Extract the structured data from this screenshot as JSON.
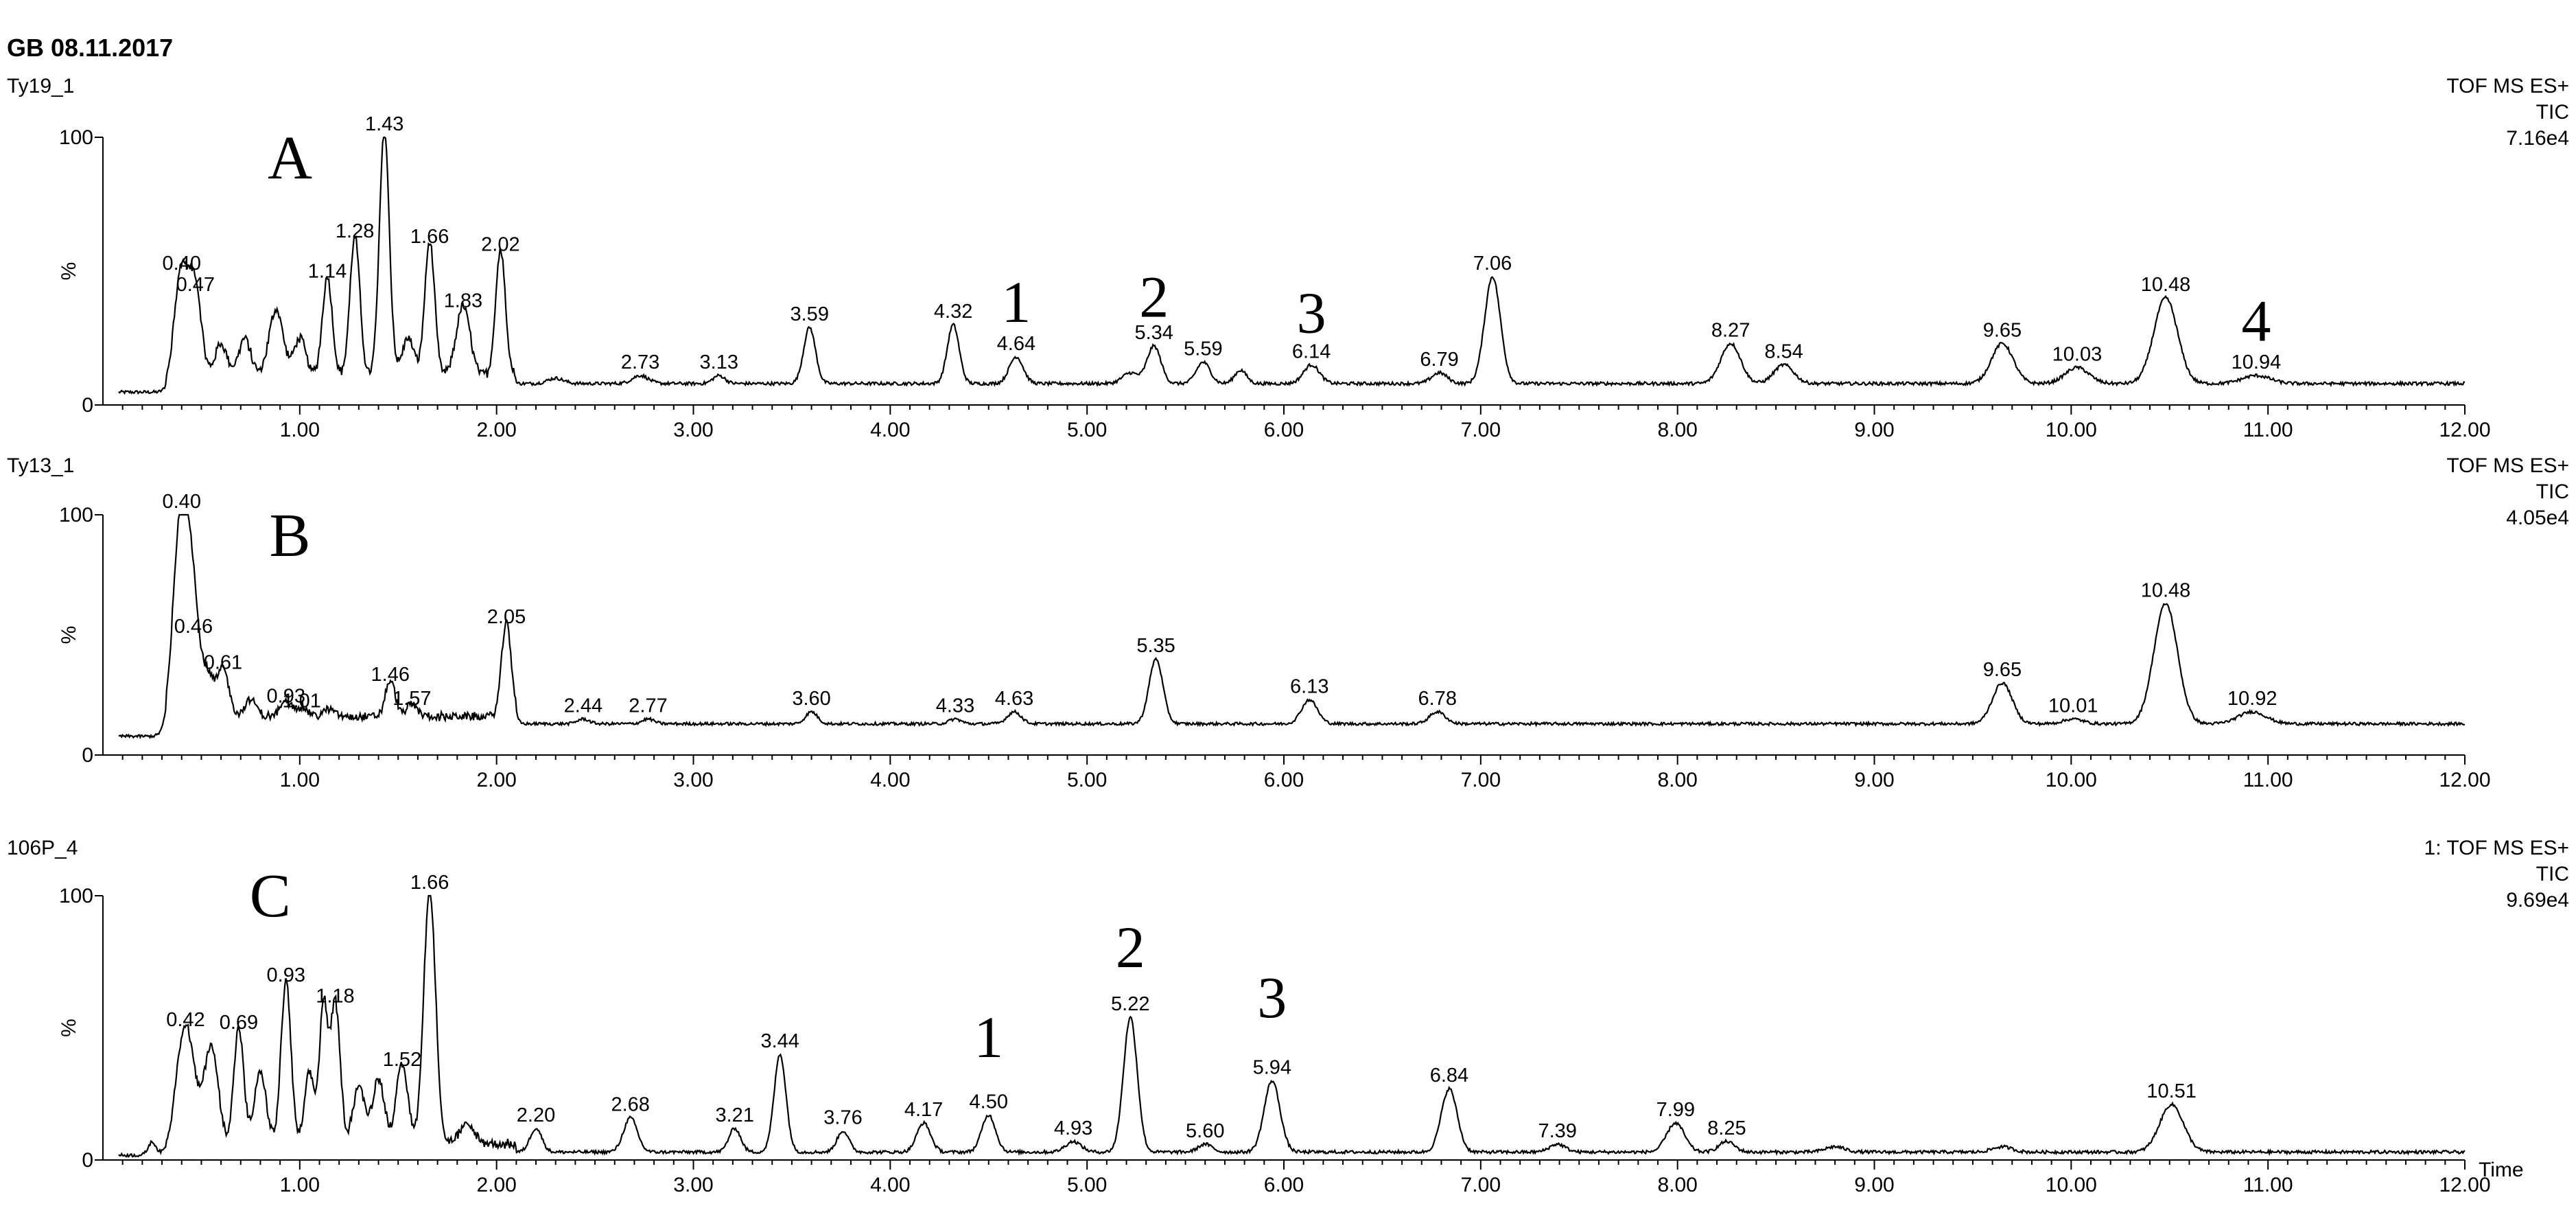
{
  "header": {
    "title": "GB 08.11.2017"
  },
  "style": {
    "line_color": "#000000",
    "background": "#ffffff"
  },
  "chart_data": [
    {
      "type": "line",
      "panel_label": "A",
      "sample_name": "Ty19_1",
      "detector": [
        "TOF MS ES+",
        "TIC",
        "7.16e4"
      ],
      "ylabel": "%",
      "y_tick_labels": [
        "0",
        "100"
      ],
      "xlim": [
        0,
        12
      ],
      "ylim": [
        0,
        100
      ],
      "x_ticks": [
        "1.00",
        "2.00",
        "3.00",
        "4.00",
        "5.00",
        "6.00",
        "7.00",
        "8.00",
        "9.00",
        "10.00",
        "11.00",
        "12.00"
      ],
      "xlabel": "",
      "baseline": 8,
      "peaks": [
        {
          "x": 0.4,
          "y": 48,
          "label": "0.40",
          "w": 0.035
        },
        {
          "x": 0.47,
          "y": 40,
          "label": "0.47",
          "w": 0.03
        },
        {
          "x": 0.6,
          "y": 20,
          "label": null,
          "w": 0.03
        },
        {
          "x": 0.72,
          "y": 22,
          "label": null,
          "w": 0.03
        },
        {
          "x": 0.88,
          "y": 33,
          "label": null,
          "w": 0.035
        },
        {
          "x": 1.0,
          "y": 22,
          "label": null,
          "w": 0.03
        },
        {
          "x": 1.14,
          "y": 45,
          "label": "1.14",
          "w": 0.025
        },
        {
          "x": 1.28,
          "y": 60,
          "label": "1.28",
          "w": 0.025
        },
        {
          "x": 1.43,
          "y": 100,
          "label": "1.43",
          "w": 0.025
        },
        {
          "x": 1.55,
          "y": 22,
          "label": null,
          "w": 0.03
        },
        {
          "x": 1.66,
          "y": 58,
          "label": "1.66",
          "w": 0.025
        },
        {
          "x": 1.83,
          "y": 34,
          "label": "1.83",
          "w": 0.035
        },
        {
          "x": 2.02,
          "y": 55,
          "label": "2.02",
          "w": 0.025
        },
        {
          "x": 2.3,
          "y": 10,
          "label": null,
          "w": 0.04
        },
        {
          "x": 2.73,
          "y": 11,
          "label": "2.73",
          "w": 0.04
        },
        {
          "x": 3.13,
          "y": 11,
          "label": "3.13",
          "w": 0.03
        },
        {
          "x": 3.59,
          "y": 29,
          "label": "3.59",
          "w": 0.03
        },
        {
          "x": 4.32,
          "y": 30,
          "label": "4.32",
          "w": 0.03
        },
        {
          "x": 4.64,
          "y": 18,
          "label": "4.64",
          "w": 0.035
        },
        {
          "x": 5.22,
          "y": 12,
          "label": null,
          "w": 0.04
        },
        {
          "x": 5.34,
          "y": 22,
          "label": "5.34",
          "w": 0.035
        },
        {
          "x": 5.59,
          "y": 16,
          "label": "5.59",
          "w": 0.035
        },
        {
          "x": 5.78,
          "y": 13,
          "label": null,
          "w": 0.03
        },
        {
          "x": 6.14,
          "y": 15,
          "label": "6.14",
          "w": 0.04
        },
        {
          "x": 6.79,
          "y": 12,
          "label": "6.79",
          "w": 0.04
        },
        {
          "x": 7.06,
          "y": 48,
          "label": "7.06",
          "w": 0.04
        },
        {
          "x": 8.27,
          "y": 23,
          "label": "8.27",
          "w": 0.05
        },
        {
          "x": 8.54,
          "y": 15,
          "label": "8.54",
          "w": 0.05
        },
        {
          "x": 9.65,
          "y": 23,
          "label": "9.65",
          "w": 0.055
        },
        {
          "x": 10.03,
          "y": 14,
          "label": "10.03",
          "w": 0.06
        },
        {
          "x": 10.48,
          "y": 40,
          "label": "10.48",
          "w": 0.06
        },
        {
          "x": 10.94,
          "y": 11,
          "label": "10.94",
          "w": 0.07
        }
      ],
      "compound_marks": [
        {
          "x": 4.64,
          "y": 31,
          "label": "1"
        },
        {
          "x": 5.34,
          "y": 33,
          "label": "2"
        },
        {
          "x": 6.14,
          "y": 27,
          "label": "3"
        },
        {
          "x": 10.94,
          "y": 24,
          "label": "4"
        }
      ]
    },
    {
      "type": "line",
      "panel_label": "B",
      "sample_name": "Ty13_1",
      "detector": [
        "TOF MS ES+",
        "TIC",
        "4.05e4"
      ],
      "ylabel": "%",
      "y_tick_labels": [
        "0",
        "100"
      ],
      "xlim": [
        0,
        12
      ],
      "ylim": [
        0,
        100
      ],
      "x_ticks": [
        "1.00",
        "2.00",
        "3.00",
        "4.00",
        "5.00",
        "6.00",
        "7.00",
        "8.00",
        "9.00",
        "10.00",
        "11.00",
        "12.00"
      ],
      "xlabel": "",
      "baseline": 13,
      "peaks": [
        {
          "x": 0.4,
          "y": 100,
          "label": "0.40",
          "w": 0.04
        },
        {
          "x": 0.46,
          "y": 48,
          "label": "0.46",
          "w": 0.03
        },
        {
          "x": 0.53,
          "y": 30,
          "label": null,
          "w": 0.03
        },
        {
          "x": 0.61,
          "y": 33,
          "label": "0.61",
          "w": 0.03
        },
        {
          "x": 0.75,
          "y": 20,
          "label": null,
          "w": 0.03
        },
        {
          "x": 0.93,
          "y": 19,
          "label": "0.93",
          "w": 0.03
        },
        {
          "x": 1.01,
          "y": 17,
          "label": "1.01",
          "w": 0.03
        },
        {
          "x": 1.15,
          "y": 16,
          "label": null,
          "w": 0.03
        },
        {
          "x": 1.46,
          "y": 28,
          "label": "1.46",
          "w": 0.025
        },
        {
          "x": 1.57,
          "y": 18,
          "label": "1.57",
          "w": 0.03
        },
        {
          "x": 2.05,
          "y": 52,
          "label": "2.05",
          "w": 0.025
        },
        {
          "x": 2.44,
          "y": 15,
          "label": "2.44",
          "w": 0.03
        },
        {
          "x": 2.77,
          "y": 15,
          "label": "2.77",
          "w": 0.03
        },
        {
          "x": 3.6,
          "y": 18,
          "label": "3.60",
          "w": 0.03
        },
        {
          "x": 4.33,
          "y": 15,
          "label": "4.33",
          "w": 0.03
        },
        {
          "x": 4.63,
          "y": 18,
          "label": "4.63",
          "w": 0.035
        },
        {
          "x": 5.35,
          "y": 40,
          "label": "5.35",
          "w": 0.035
        },
        {
          "x": 6.13,
          "y": 23,
          "label": "6.13",
          "w": 0.04
        },
        {
          "x": 6.78,
          "y": 18,
          "label": "6.78",
          "w": 0.04
        },
        {
          "x": 9.65,
          "y": 30,
          "label": "9.65",
          "w": 0.05
        },
        {
          "x": 10.01,
          "y": 15,
          "label": "10.01",
          "w": 0.05
        },
        {
          "x": 10.48,
          "y": 63,
          "label": "10.48",
          "w": 0.06
        },
        {
          "x": 10.92,
          "y": 18,
          "label": "10.92",
          "w": 0.07
        }
      ],
      "compound_marks": []
    },
    {
      "type": "line",
      "panel_label": "C",
      "sample_name": "106P_4",
      "detector": [
        "1: TOF MS ES+",
        "TIC",
        "9.69e4"
      ],
      "ylabel": "%",
      "y_tick_labels": [
        "0",
        "100"
      ],
      "xlim": [
        0,
        12
      ],
      "ylim": [
        0,
        100
      ],
      "x_ticks": [
        "1.00",
        "2.00",
        "3.00",
        "4.00",
        "5.00",
        "6.00",
        "7.00",
        "8.00",
        "9.00",
        "10.00",
        "11.00",
        "12.00"
      ],
      "xlabel": "Time",
      "baseline": 3,
      "peaks": [
        {
          "x": 0.25,
          "y": 8,
          "label": null,
          "w": 0.02
        },
        {
          "x": 0.42,
          "y": 48,
          "label": "0.42",
          "w": 0.045
        },
        {
          "x": 0.55,
          "y": 40,
          "label": null,
          "w": 0.035
        },
        {
          "x": 0.69,
          "y": 47,
          "label": "0.69",
          "w": 0.025
        },
        {
          "x": 0.8,
          "y": 30,
          "label": null,
          "w": 0.03
        },
        {
          "x": 0.93,
          "y": 65,
          "label": "0.93",
          "w": 0.025
        },
        {
          "x": 1.05,
          "y": 30,
          "label": null,
          "w": 0.025
        },
        {
          "x": 1.12,
          "y": 55,
          "label": null,
          "w": 0.02
        },
        {
          "x": 1.18,
          "y": 57,
          "label": "1.18",
          "w": 0.025
        },
        {
          "x": 1.3,
          "y": 25,
          "label": null,
          "w": 0.03
        },
        {
          "x": 1.4,
          "y": 28,
          "label": null,
          "w": 0.03
        },
        {
          "x": 1.52,
          "y": 33,
          "label": "1.52",
          "w": 0.03
        },
        {
          "x": 1.66,
          "y": 100,
          "label": "1.66",
          "w": 0.03
        },
        {
          "x": 1.85,
          "y": 10,
          "label": null,
          "w": 0.04
        },
        {
          "x": 2.2,
          "y": 12,
          "label": "2.20",
          "w": 0.03
        },
        {
          "x": 2.68,
          "y": 16,
          "label": "2.68",
          "w": 0.035
        },
        {
          "x": 3.21,
          "y": 12,
          "label": "3.21",
          "w": 0.03
        },
        {
          "x": 3.44,
          "y": 40,
          "label": "3.44",
          "w": 0.03
        },
        {
          "x": 3.76,
          "y": 11,
          "label": "3.76",
          "w": 0.03
        },
        {
          "x": 4.17,
          "y": 14,
          "label": "4.17",
          "w": 0.035
        },
        {
          "x": 4.5,
          "y": 17,
          "label": "4.50",
          "w": 0.035
        },
        {
          "x": 4.93,
          "y": 7,
          "label": "4.93",
          "w": 0.04
        },
        {
          "x": 5.22,
          "y": 54,
          "label": "5.22",
          "w": 0.035
        },
        {
          "x": 5.6,
          "y": 6,
          "label": "5.60",
          "w": 0.035
        },
        {
          "x": 5.94,
          "y": 30,
          "label": "5.94",
          "w": 0.04
        },
        {
          "x": 6.84,
          "y": 27,
          "label": "6.84",
          "w": 0.04
        },
        {
          "x": 7.39,
          "y": 6,
          "label": "7.39",
          "w": 0.04
        },
        {
          "x": 7.99,
          "y": 14,
          "label": "7.99",
          "w": 0.045
        },
        {
          "x": 8.25,
          "y": 7,
          "label": "8.25",
          "w": 0.04
        },
        {
          "x": 8.8,
          "y": 5,
          "label": null,
          "w": 0.05
        },
        {
          "x": 9.65,
          "y": 5,
          "label": null,
          "w": 0.05
        },
        {
          "x": 10.51,
          "y": 21,
          "label": "10.51",
          "w": 0.06
        }
      ],
      "compound_marks": [
        {
          "x": 4.5,
          "y": 39,
          "label": "1"
        },
        {
          "x": 5.22,
          "y": 73,
          "label": "2"
        },
        {
          "x": 5.94,
          "y": 54,
          "label": "3"
        }
      ]
    }
  ]
}
